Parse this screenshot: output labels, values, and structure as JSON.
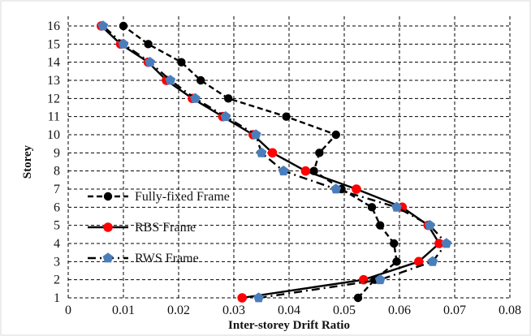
{
  "chart_data": {
    "type": "line",
    "title": "",
    "xlabel": "Inter-storey Drift Ratio",
    "ylabel": "Storey",
    "xlim": [
      0,
      0.08
    ],
    "ylim": [
      1,
      16
    ],
    "x_ticks": [
      0,
      0.01,
      0.02,
      0.03,
      0.04,
      0.05,
      0.06,
      0.07,
      0.08
    ],
    "y_ticks": [
      1,
      2,
      3,
      4,
      5,
      6,
      7,
      8,
      9,
      10,
      11,
      12,
      13,
      14,
      15,
      16
    ],
    "grid": true,
    "legend_position": "bottom-left",
    "series": [
      {
        "name": "Fully-fixed Frame",
        "style": "dashed",
        "marker": "circle",
        "color": "#000000",
        "x": [
          0.0525,
          0.0555,
          0.0595,
          0.059,
          0.0565,
          0.055,
          0.0495,
          0.0445,
          0.0455,
          0.0485,
          0.0395,
          0.029,
          0.024,
          0.0205,
          0.0145,
          0.01
        ],
        "y": [
          1,
          2,
          3,
          4,
          5,
          6,
          7,
          8,
          9,
          10,
          11,
          12,
          13,
          14,
          15,
          16
        ]
      },
      {
        "name": "RBS Frame",
        "style": "solid",
        "marker": "circle",
        "color": "#ff0000",
        "x": [
          0.0315,
          0.0535,
          0.0635,
          0.0672,
          0.0652,
          0.0605,
          0.0522,
          0.043,
          0.037,
          0.0335,
          0.028,
          0.0225,
          0.0178,
          0.0145,
          0.0095,
          0.006
        ],
        "y": [
          1,
          2,
          3,
          4,
          5,
          6,
          7,
          8,
          9,
          10,
          11,
          12,
          13,
          14,
          15,
          16
        ]
      },
      {
        "name": "RWS Frame",
        "style": "dash-dot",
        "marker": "pentagon",
        "color": "#4a7ebb",
        "x": [
          0.0345,
          0.0565,
          0.066,
          0.0685,
          0.0655,
          0.0595,
          0.0485,
          0.039,
          0.035,
          0.034,
          0.0285,
          0.023,
          0.0185,
          0.0148,
          0.01,
          0.0063
        ],
        "y": [
          1,
          2,
          3,
          4,
          5,
          6,
          7,
          8,
          9,
          10,
          11,
          12,
          13,
          14,
          15,
          16
        ]
      }
    ]
  }
}
